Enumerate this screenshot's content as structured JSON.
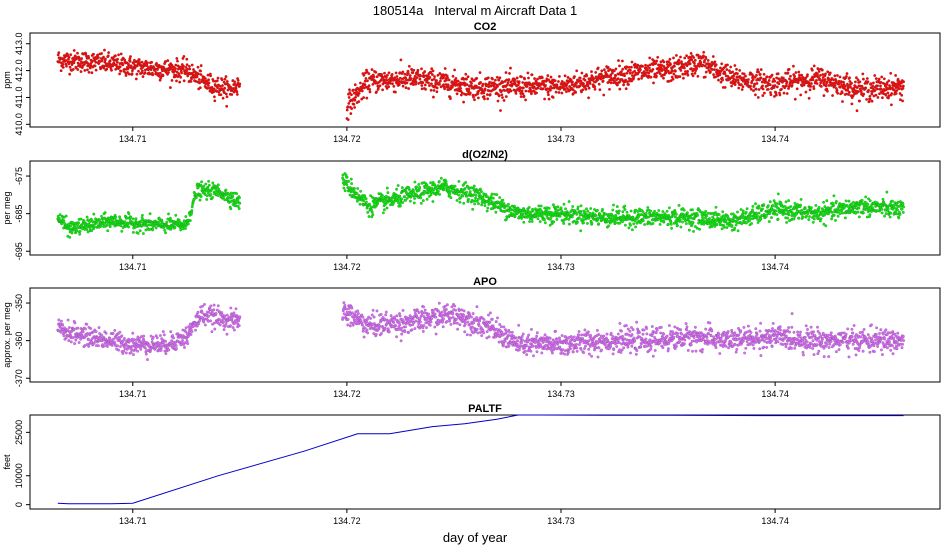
{
  "figure": {
    "title": "180514a   Interval m Aircraft Data 1",
    "xlabel": "day of year"
  },
  "chart_data": [
    {
      "type": "scatter",
      "title": "CO2",
      "ylabel": "ppm",
      "color": "#ff0000",
      "xlim": [
        134.7052,
        134.7477
      ],
      "ylim": [
        409.9,
        413.4
      ],
      "xticks": [
        134.71,
        134.72,
        134.73,
        134.74
      ],
      "xtick_labels": [
        "134.71",
        "134.72",
        "134.73",
        "134.74"
      ],
      "yticks": [
        410.0,
        411.0,
        412.0,
        413.0
      ],
      "ytick_labels": [
        "410.0",
        "411.0",
        "412.0",
        "413.0"
      ],
      "grid": false,
      "segments": [
        {
          "x": [
            134.7065,
            134.7085,
            134.7105,
            134.7125,
            134.7135,
            134.7145,
            134.715
          ],
          "y": [
            412.4,
            412.3,
            412.1,
            412.0,
            411.5,
            411.3,
            411.5
          ],
          "spread": 0.35
        },
        {
          "x": [
            134.72,
            134.721,
            134.723,
            134.726,
            134.73,
            134.733,
            134.735,
            134.7365,
            134.738,
            134.74,
            134.742,
            134.744,
            134.746
          ],
          "y": [
            410.7,
            411.6,
            411.7,
            411.4,
            411.4,
            411.9,
            412.0,
            412.3,
            411.7,
            411.5,
            411.7,
            411.3,
            411.4
          ],
          "spread": 0.4
        }
      ]
    },
    {
      "type": "scatter",
      "title": "d(O2/N2)",
      "ylabel": "per meg",
      "color": "#00ee00",
      "xlim": [
        134.7052,
        134.7477
      ],
      "ylim": [
        -696,
        -671
      ],
      "xticks": [
        134.71,
        134.72,
        134.73,
        134.74
      ],
      "xtick_labels": [
        "134.71",
        "134.72",
        "134.73",
        "134.74"
      ],
      "yticks": [
        -675,
        -685,
        -695
      ],
      "ytick_labels": [
        "-675",
        "-685",
        "-695"
      ],
      "grid": false,
      "segments": [
        {
          "x": [
            134.7065,
            134.707,
            134.709,
            134.711,
            134.7125,
            134.713,
            134.714,
            134.715
          ],
          "y": [
            -686,
            -689,
            -687,
            -688,
            -688,
            -679,
            -679,
            -682
          ],
          "spread": 1.8
        },
        {
          "x": [
            134.7198,
            134.721,
            134.723,
            134.7245,
            134.726,
            134.728,
            134.73,
            134.732,
            134.734,
            134.736,
            134.738,
            134.74,
            134.742,
            134.744,
            134.746
          ],
          "y": [
            -676,
            -683,
            -680,
            -678,
            -680,
            -685,
            -685,
            -686,
            -686,
            -686,
            -687,
            -684,
            -685,
            -683,
            -684
          ],
          "spread": 2.2
        }
      ]
    },
    {
      "type": "scatter",
      "title": "APO",
      "ylabel": "approx. per meg",
      "color": "#dd66ff",
      "xlim": [
        134.7052,
        134.7477
      ],
      "ylim": [
        -371,
        -346
      ],
      "xticks": [
        134.71,
        134.72,
        134.73,
        134.74
      ],
      "xtick_labels": [
        "134.71",
        "134.72",
        "134.73",
        "134.74"
      ],
      "yticks": [
        -350,
        -360,
        -370
      ],
      "ytick_labels": [
        "-350",
        "-360",
        "-370"
      ],
      "grid": false,
      "segments": [
        {
          "x": [
            134.7065,
            134.708,
            134.71,
            134.7115,
            134.7125,
            134.7132,
            134.714,
            134.715
          ],
          "y": [
            -357,
            -359,
            -361,
            -361,
            -359,
            -353,
            -354,
            -355
          ],
          "spread": 2.4
        },
        {
          "x": [
            134.7198,
            134.721,
            134.723,
            134.725,
            134.7265,
            134.728,
            134.73,
            134.732,
            134.734,
            134.736,
            134.738,
            134.74,
            134.742,
            134.744,
            134.746
          ],
          "y": [
            -352,
            -356,
            -355,
            -353,
            -356,
            -361,
            -361,
            -360,
            -360,
            -359,
            -360,
            -359,
            -360,
            -360,
            -360
          ],
          "spread": 2.8
        }
      ]
    },
    {
      "type": "line",
      "title": "PALTF",
      "ylabel": "feet",
      "color": "#0000cc",
      "xlim": [
        134.7052,
        134.7477
      ],
      "ylim": [
        -1500,
        31000
      ],
      "xticks": [
        134.71,
        134.72,
        134.73,
        134.74
      ],
      "xtick_labels": [
        "134.71",
        "134.72",
        "134.73",
        "134.74"
      ],
      "yticks": [
        0,
        10000,
        25000
      ],
      "ytick_labels": [
        "0",
        "10000",
        "25000"
      ],
      "grid": false,
      "x": [
        134.7065,
        134.707,
        134.709,
        134.71,
        134.714,
        134.718,
        134.7205,
        134.7212,
        134.722,
        134.724,
        134.7255,
        134.727,
        134.728,
        134.729,
        134.732,
        134.735,
        134.74,
        134.742,
        134.746
      ],
      "y": [
        500,
        300,
        300,
        500,
        10000,
        18500,
        24500,
        24500,
        24500,
        27000,
        28000,
        29500,
        31000,
        31000,
        30900,
        30900,
        30800,
        30800,
        30800
      ]
    }
  ]
}
